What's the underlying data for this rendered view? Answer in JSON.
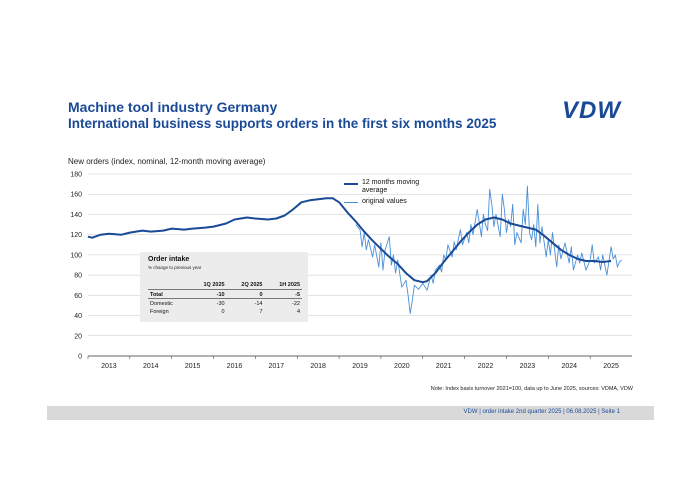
{
  "header": {
    "title": "Machine tool industry Germany",
    "subtitle": "International business supports orders in the first six months 2025",
    "logo_text": "VDW"
  },
  "chart_data": {
    "type": "line",
    "ylabel": "New orders (index, nominal, 12-month moving average)",
    "ylim": [
      0,
      180
    ],
    "yticks": [
      0,
      20,
      40,
      60,
      80,
      100,
      120,
      140,
      160,
      180
    ],
    "x_labels": [
      "2013",
      "2014",
      "2015",
      "2016",
      "2017",
      "2018",
      "2019",
      "2020",
      "2021",
      "2022",
      "2023",
      "2024",
      "2025"
    ],
    "xlim": [
      2012.5,
      2025.5
    ],
    "grid": true,
    "legend_position": "top-center",
    "series": [
      {
        "name": "12 months moving average",
        "color": "#1a4a96",
        "points": [
          [
            2012.5,
            118
          ],
          [
            2012.6,
            117
          ],
          [
            2012.8,
            120
          ],
          [
            2013.0,
            121
          ],
          [
            2013.3,
            120
          ],
          [
            2013.5,
            122
          ],
          [
            2013.8,
            124
          ],
          [
            2014.0,
            123
          ],
          [
            2014.3,
            124
          ],
          [
            2014.5,
            126
          ],
          [
            2014.8,
            125
          ],
          [
            2015.0,
            126
          ],
          [
            2015.3,
            127
          ],
          [
            2015.5,
            128
          ],
          [
            2015.8,
            131
          ],
          [
            2016.0,
            135
          ],
          [
            2016.3,
            137
          ],
          [
            2016.5,
            136
          ],
          [
            2016.8,
            135
          ],
          [
            2017.0,
            136
          ],
          [
            2017.2,
            139
          ],
          [
            2017.4,
            145
          ],
          [
            2017.6,
            152
          ],
          [
            2017.8,
            154
          ],
          [
            2018.0,
            155
          ],
          [
            2018.2,
            156
          ],
          [
            2018.35,
            156
          ],
          [
            2018.5,
            152
          ],
          [
            2018.7,
            142
          ],
          [
            2018.9,
            133
          ],
          [
            2019.1,
            123
          ],
          [
            2019.3,
            114
          ],
          [
            2019.5,
            106
          ],
          [
            2019.7,
            98
          ],
          [
            2019.9,
            91
          ],
          [
            2020.1,
            82
          ],
          [
            2020.3,
            75
          ],
          [
            2020.5,
            73
          ],
          [
            2020.6,
            74
          ],
          [
            2020.8,
            82
          ],
          [
            2021.0,
            93
          ],
          [
            2021.2,
            103
          ],
          [
            2021.4,
            113
          ],
          [
            2021.6,
            122
          ],
          [
            2021.8,
            130
          ],
          [
            2022.0,
            135
          ],
          [
            2022.2,
            137
          ],
          [
            2022.4,
            135
          ],
          [
            2022.6,
            131
          ],
          [
            2022.8,
            129
          ],
          [
            2023.0,
            127
          ],
          [
            2023.2,
            125
          ],
          [
            2023.4,
            119
          ],
          [
            2023.6,
            112
          ],
          [
            2023.8,
            105
          ],
          [
            2024.0,
            100
          ],
          [
            2024.2,
            96
          ],
          [
            2024.4,
            94
          ],
          [
            2024.6,
            94
          ],
          [
            2024.8,
            93
          ],
          [
            2025.0,
            94
          ]
        ]
      },
      {
        "name": "original values",
        "color": "#4a90d9",
        "points": [
          [
            2018.9,
            130
          ],
          [
            2019.0,
            125
          ],
          [
            2019.05,
            108
          ],
          [
            2019.1,
            122
          ],
          [
            2019.15,
            105
          ],
          [
            2019.2,
            115
          ],
          [
            2019.3,
            98
          ],
          [
            2019.35,
            110
          ],
          [
            2019.45,
            88
          ],
          [
            2019.5,
            112
          ],
          [
            2019.55,
            85
          ],
          [
            2019.6,
            105
          ],
          [
            2019.7,
            118
          ],
          [
            2019.75,
            90
          ],
          [
            2019.8,
            100
          ],
          [
            2019.85,
            82
          ],
          [
            2019.9,
            95
          ],
          [
            2020.0,
            68
          ],
          [
            2020.1,
            75
          ],
          [
            2020.15,
            60
          ],
          [
            2020.2,
            42
          ],
          [
            2020.25,
            55
          ],
          [
            2020.3,
            70
          ],
          [
            2020.4,
            66
          ],
          [
            2020.5,
            72
          ],
          [
            2020.6,
            65
          ],
          [
            2020.7,
            80
          ],
          [
            2020.75,
            72
          ],
          [
            2020.8,
            85
          ],
          [
            2020.9,
            90
          ],
          [
            2020.95,
            83
          ],
          [
            2021.0,
            100
          ],
          [
            2021.05,
            95
          ],
          [
            2021.1,
            110
          ],
          [
            2021.2,
            98
          ],
          [
            2021.25,
            113
          ],
          [
            2021.3,
            105
          ],
          [
            2021.4,
            125
          ],
          [
            2021.45,
            110
          ],
          [
            2021.55,
            122
          ],
          [
            2021.6,
            112
          ],
          [
            2021.65,
            130
          ],
          [
            2021.7,
            120
          ],
          [
            2021.8,
            145
          ],
          [
            2021.85,
            132
          ],
          [
            2021.9,
            118
          ],
          [
            2021.95,
            140
          ],
          [
            2022.0,
            130
          ],
          [
            2022.05,
            124
          ],
          [
            2022.1,
            165
          ],
          [
            2022.15,
            150
          ],
          [
            2022.2,
            128
          ],
          [
            2022.25,
            140
          ],
          [
            2022.35,
            118
          ],
          [
            2022.4,
            160
          ],
          [
            2022.45,
            145
          ],
          [
            2022.5,
            122
          ],
          [
            2022.55,
            135
          ],
          [
            2022.6,
            128
          ],
          [
            2022.65,
            150
          ],
          [
            2022.7,
            110
          ],
          [
            2022.75,
            122
          ],
          [
            2022.85,
            112
          ],
          [
            2022.9,
            145
          ],
          [
            2022.95,
            130
          ],
          [
            2023.0,
            168
          ],
          [
            2023.05,
            122
          ],
          [
            2023.1,
            115
          ],
          [
            2023.15,
            130
          ],
          [
            2023.2,
            108
          ],
          [
            2023.25,
            150
          ],
          [
            2023.3,
            112
          ],
          [
            2023.35,
            128
          ],
          [
            2023.45,
            98
          ],
          [
            2023.5,
            115
          ],
          [
            2023.55,
            100
          ],
          [
            2023.6,
            122
          ],
          [
            2023.7,
            88
          ],
          [
            2023.75,
            110
          ],
          [
            2023.8,
            96
          ],
          [
            2023.9,
            112
          ],
          [
            2024.0,
            92
          ],
          [
            2024.05,
            108
          ],
          [
            2024.1,
            85
          ],
          [
            2024.2,
            100
          ],
          [
            2024.25,
            92
          ],
          [
            2024.3,
            102
          ],
          [
            2024.4,
            85
          ],
          [
            2024.5,
            95
          ],
          [
            2024.55,
            110
          ],
          [
            2024.6,
            92
          ],
          [
            2024.7,
            98
          ],
          [
            2024.75,
            85
          ],
          [
            2024.8,
            100
          ],
          [
            2024.9,
            80
          ],
          [
            2025.0,
            108
          ],
          [
            2025.05,
            96
          ],
          [
            2025.1,
            100
          ],
          [
            2025.15,
            88
          ],
          [
            2025.2,
            93
          ],
          [
            2025.25,
            95
          ]
        ]
      }
    ]
  },
  "inset_table": {
    "title": "Order intake",
    "subtitle": "% change to previous year",
    "columns": [
      "",
      "1Q 2025",
      "2Q 2025",
      "1H 2025"
    ],
    "rows": [
      {
        "label": "Total",
        "values": [
          "-10",
          "0",
          "-5"
        ]
      },
      {
        "label": "Domestic",
        "values": [
          "-30",
          "-14",
          "-22"
        ]
      },
      {
        "label": "Foreign",
        "values": [
          "0",
          "7",
          "4"
        ]
      }
    ]
  },
  "note": "Note: Index basis turnover 2021=100, data up to June 2025, sources: VDMA, VDW",
  "footer": {
    "text": "VDW | order intake 2nd quarter 2025 | 06.08.2025 | Seite 1"
  }
}
